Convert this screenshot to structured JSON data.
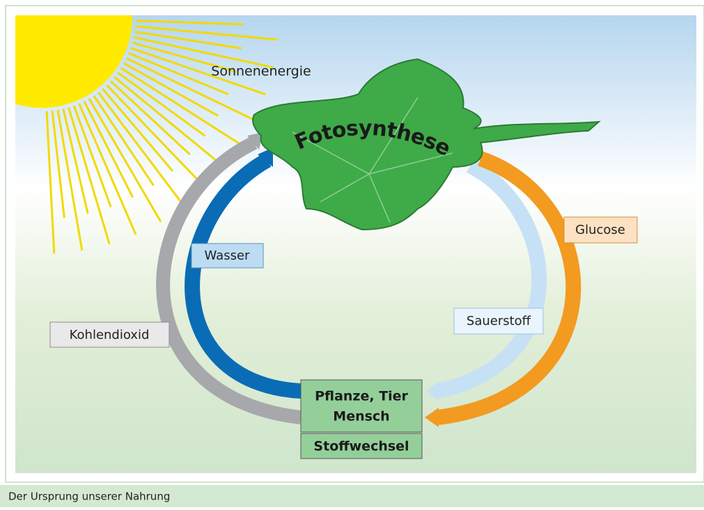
{
  "diagram": {
    "sun_label": "Sonnenenergie",
    "leaf_label": "Fotosynthese",
    "inputs": [
      "Wasser",
      "Kohlendioxid"
    ],
    "outputs": [
      "Glucose",
      "Sauerstoff"
    ],
    "organisms": [
      "Pflanze, Tier",
      "Mensch"
    ],
    "process": "Stoffwechsel"
  },
  "caption": "Der Ursprung unserer Nahrung"
}
